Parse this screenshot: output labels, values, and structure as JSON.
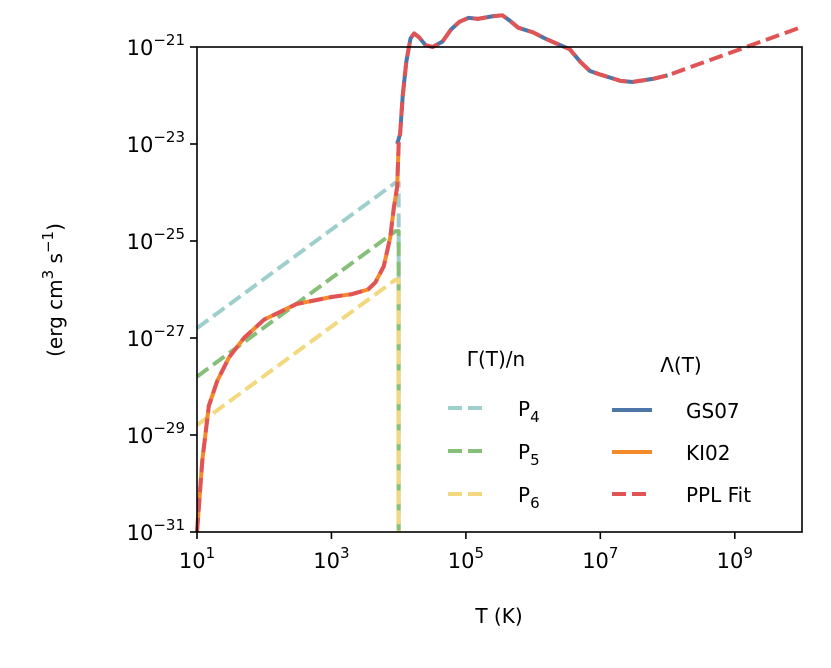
{
  "chart_data": {
    "type": "line",
    "xscale": "log",
    "yscale": "log",
    "xlabel": "T (K)",
    "ylabel_parts": [
      "(erg cm",
      "3",
      " s",
      "−1",
      ")"
    ],
    "xlim": [
      10,
      10000000000.0
    ],
    "ylim": [
      1e-31,
      1e-21
    ],
    "x_ticks": [
      {
        "base": "10",
        "exp": "1",
        "value": 10
      },
      {
        "base": "10",
        "exp": "3",
        "value": 1000
      },
      {
        "base": "10",
        "exp": "5",
        "value": 100000
      },
      {
        "base": "10",
        "exp": "7",
        "value": 10000000
      },
      {
        "base": "10",
        "exp": "9",
        "value": 1000000000
      }
    ],
    "y_ticks": [
      {
        "base": "10",
        "exp": "−21",
        "value": 1e-21
      },
      {
        "base": "10",
        "exp": "−23",
        "value": 1e-23
      },
      {
        "base": "10",
        "exp": "−25",
        "value": 1e-25
      },
      {
        "base": "10",
        "exp": "−27",
        "value": 1e-27
      },
      {
        "base": "10",
        "exp": "−29",
        "value": 1e-29
      },
      {
        "base": "10",
        "exp": "−31",
        "value": 1e-31
      }
    ],
    "heating_legend_title": "Γ(T)/n",
    "cooling_legend_title": "Λ(T)",
    "heating_series": [
      {
        "name": "P4",
        "label_base": "P",
        "label_sub": "4",
        "color": "#9ecfcc",
        "dash": "dashed",
        "points": [
          [
            10,
            1.6e-27
          ],
          [
            9000,
            1.6e-24
          ],
          [
            10000,
            1.6e-24
          ],
          [
            10000,
            1e-31
          ]
        ]
      },
      {
        "name": "P5",
        "label_base": "P",
        "label_sub": "5",
        "color": "#86bf78",
        "dash": "dashed",
        "points": [
          [
            10,
            1.6e-28
          ],
          [
            9000,
            1.6e-25
          ],
          [
            10000,
            1.6e-25
          ],
          [
            10000,
            1e-31
          ]
        ]
      },
      {
        "name": "P6",
        "label_base": "P",
        "label_sub": "6",
        "color": "#f2d87e",
        "dash": "dashed",
        "points": [
          [
            10,
            1.6e-29
          ],
          [
            9000,
            1.6e-26
          ],
          [
            10000,
            1.6e-26
          ],
          [
            10000,
            1e-31
          ]
        ]
      }
    ],
    "cooling_series": [
      {
        "name": "GS07",
        "color": "#4c76a8",
        "dash": "solid",
        "points": [
          [
            9500,
            1e-23
          ],
          [
            10500,
            1.6e-23
          ],
          [
            11500,
            1e-22
          ],
          [
            13000,
            5e-22
          ],
          [
            15000,
            1.5e-21
          ],
          [
            17000,
            1.9e-21
          ],
          [
            20000,
            1.6e-21
          ],
          [
            25000,
            1.1e-21
          ],
          [
            32000,
            1e-21
          ],
          [
            45000,
            1.3e-21
          ],
          [
            60000,
            2.3e-21
          ],
          [
            80000,
            3.3e-21
          ],
          [
            110000,
            4e-21
          ],
          [
            150000,
            3.8e-21
          ],
          [
            250000,
            4.3e-21
          ],
          [
            350000,
            4.5e-21
          ],
          [
            450000,
            3.5e-21
          ],
          [
            600000,
            2.5e-21
          ],
          [
            1000000,
            2e-21
          ],
          [
            1500000,
            1.5e-21
          ],
          [
            2500000,
            1.1e-21
          ],
          [
            3500000,
            9e-22
          ],
          [
            5000000,
            5e-22
          ],
          [
            7000000,
            3.2e-22
          ],
          [
            10000000,
            2.7e-22
          ],
          [
            20000000,
            2e-22
          ],
          [
            30000000,
            1.9e-22
          ],
          [
            60000000,
            2.2e-22
          ],
          [
            100000000,
            2.6e-22
          ]
        ]
      },
      {
        "name": "KI02",
        "color": "#f58a2a",
        "dash": "solid",
        "points": [
          [
            10,
            1e-31
          ],
          [
            12,
            3e-30
          ],
          [
            15,
            4e-29
          ],
          [
            20,
            1.3e-28
          ],
          [
            30,
            4e-28
          ],
          [
            50,
            1e-27
          ],
          [
            100,
            2.4e-27
          ],
          [
            300,
            5e-27
          ],
          [
            1000,
            7e-27
          ],
          [
            2000,
            8e-27
          ],
          [
            3500,
            1e-26
          ],
          [
            4500,
            1.4e-26
          ],
          [
            6000,
            3e-26
          ],
          [
            7500,
            1.2e-25
          ],
          [
            8500,
            5e-25
          ],
          [
            9500,
            1.3e-24
          ],
          [
            10000,
            1e-23
          ]
        ]
      },
      {
        "name": "PPL Fit",
        "color": "#e05455",
        "dash": "dashed",
        "points": [
          [
            10,
            1e-31
          ],
          [
            12,
            3e-30
          ],
          [
            15,
            4e-29
          ],
          [
            20,
            1.3e-28
          ],
          [
            30,
            4e-28
          ],
          [
            50,
            1e-27
          ],
          [
            100,
            2.4e-27
          ],
          [
            300,
            5e-27
          ],
          [
            1000,
            7e-27
          ],
          [
            2000,
            8e-27
          ],
          [
            3500,
            1e-26
          ],
          [
            4500,
            1.4e-26
          ],
          [
            6000,
            3e-26
          ],
          [
            7500,
            1.2e-25
          ],
          [
            8500,
            5e-25
          ],
          [
            9500,
            1.3e-24
          ],
          [
            10000,
            1e-23
          ],
          [
            10500,
            1.6e-23
          ],
          [
            11500,
            1e-22
          ],
          [
            13000,
            5e-22
          ],
          [
            15000,
            1.5e-21
          ],
          [
            17000,
            1.9e-21
          ],
          [
            20000,
            1.6e-21
          ],
          [
            25000,
            1.1e-21
          ],
          [
            32000,
            1e-21
          ],
          [
            45000,
            1.3e-21
          ],
          [
            60000,
            2.3e-21
          ],
          [
            80000,
            3.3e-21
          ],
          [
            110000,
            4e-21
          ],
          [
            150000,
            3.8e-21
          ],
          [
            250000,
            4.3e-21
          ],
          [
            350000,
            4.5e-21
          ],
          [
            450000,
            3.5e-21
          ],
          [
            600000,
            2.5e-21
          ],
          [
            1000000,
            2e-21
          ],
          [
            1500000,
            1.5e-21
          ],
          [
            2500000,
            1.1e-21
          ],
          [
            3500000,
            9e-22
          ],
          [
            5000000,
            5e-22
          ],
          [
            7000000,
            3.2e-22
          ],
          [
            10000000,
            2.7e-22
          ],
          [
            20000000,
            2e-22
          ],
          [
            30000000,
            1.9e-22
          ],
          [
            60000000,
            2.2e-22
          ],
          [
            100000000,
            2.6e-22
          ],
          [
            10000000000.0,
            2.6e-21
          ]
        ]
      }
    ]
  }
}
